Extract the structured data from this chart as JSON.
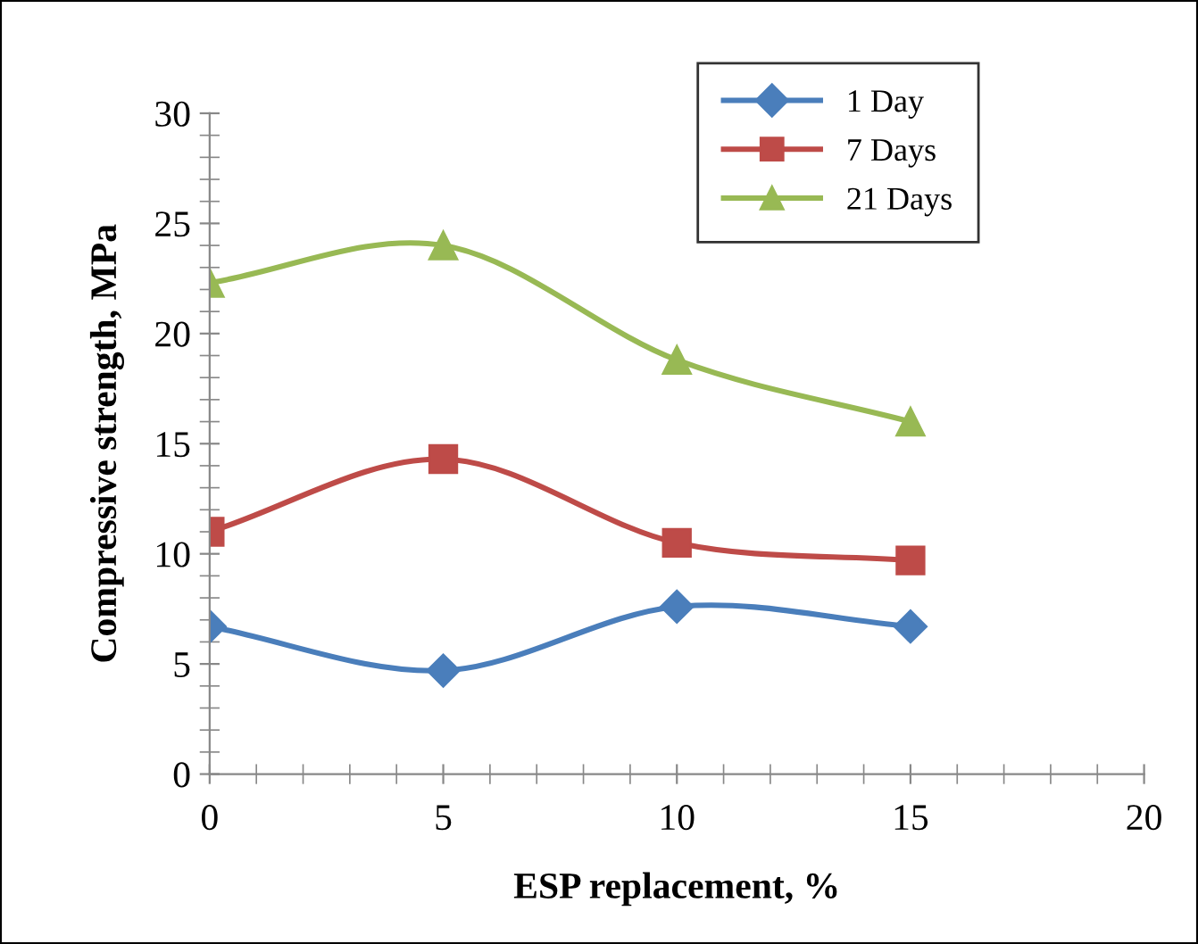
{
  "chart_data": {
    "type": "line",
    "xlabel": "ESP replacement, %",
    "ylabel": "Compressive strength, MPa",
    "x": [
      0,
      5,
      10,
      15
    ],
    "series": [
      {
        "name": "1 Day",
        "color": "#4a7ebb",
        "marker": "diamond",
        "values": [
          6.7,
          4.7,
          7.6,
          6.7
        ]
      },
      {
        "name": "7 Days",
        "color": "#be4b48",
        "marker": "square",
        "values": [
          11.0,
          14.3,
          10.5,
          9.7
        ]
      },
      {
        "name": "21 Days",
        "color": "#98b954",
        "marker": "triangle",
        "values": [
          22.3,
          24.0,
          18.8,
          16.0
        ]
      }
    ],
    "xlim": [
      0,
      20
    ],
    "xticks": [
      0,
      5,
      10,
      15,
      20
    ],
    "ylim": [
      0,
      30
    ],
    "yticks": [
      0,
      5,
      10,
      15,
      20,
      25,
      30
    ],
    "grid": false,
    "legend": "top right",
    "line_style": "solid"
  }
}
